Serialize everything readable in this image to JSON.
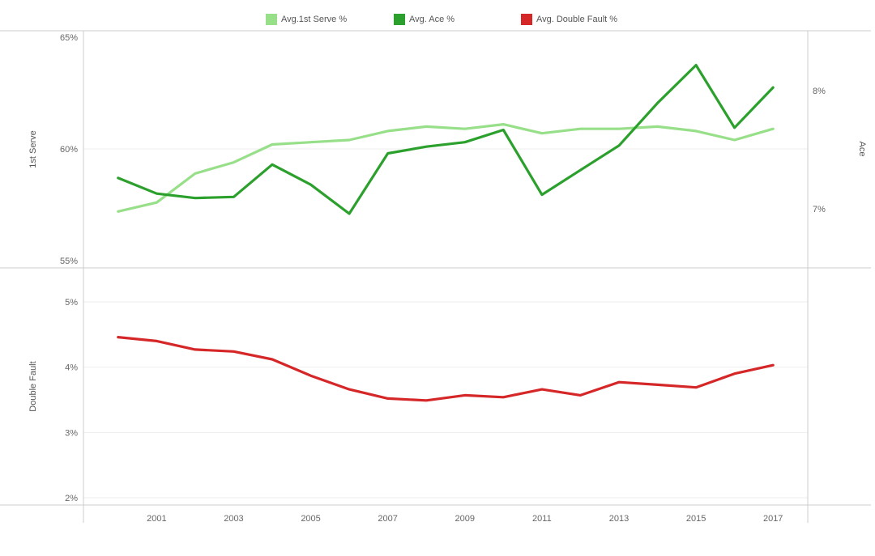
{
  "chart_data": {
    "type": "line",
    "legend": {
      "placement": "top-center",
      "items": [
        {
          "label": "Avg.1st Serve %",
          "color": "#98df8a"
        },
        {
          "label": "Avg. Ace %",
          "color": "#2ca02c"
        },
        {
          "label": "Avg. Double Fault %",
          "color": "#d62728"
        }
      ]
    },
    "x": [
      2000,
      2001,
      2002,
      2003,
      2004,
      2005,
      2006,
      2007,
      2008,
      2009,
      2010,
      2011,
      2012,
      2013,
      2014,
      2015,
      2016,
      2017
    ],
    "x_tick_labels": [
      "2001",
      "2003",
      "2005",
      "2007",
      "2009",
      "2011",
      "2013",
      "2015",
      "2017"
    ],
    "x_tick_values": [
      2001,
      2003,
      2005,
      2007,
      2009,
      2011,
      2013,
      2015,
      2017
    ],
    "xlim": [
      1999.1,
      2017.9
    ],
    "panels": [
      {
        "name": "top",
        "left_axis": {
          "label": "1st Serve",
          "range": [
            55,
            65
          ],
          "ticks": [
            55,
            60,
            65
          ],
          "tick_labels": [
            "55%",
            "60%",
            "65%"
          ]
        },
        "right_axis": {
          "label": "Ace",
          "range": [
            6.5,
            8.5
          ],
          "ticks": [
            7,
            8
          ],
          "tick_labels": [
            "7%",
            "8%"
          ]
        },
        "series": [
          {
            "name": "Avg.1st Serve %",
            "axis": "left",
            "color": "#98df8a",
            "values": [
              57.2,
              57.6,
              58.9,
              59.4,
              60.2,
              60.3,
              60.4,
              60.8,
              61.0,
              60.9,
              61.1,
              60.7,
              60.9,
              60.9,
              61.0,
              60.8,
              60.4,
              60.9
            ]
          },
          {
            "name": "Avg. Ace %",
            "axis": "left",
            "color": "#2ca02c",
            "values": [
              58.7,
              58.0,
              57.8,
              57.85,
              59.3,
              58.4,
              57.1,
              59.8,
              60.1,
              60.3,
              60.85,
              57.95,
              59.05,
              60.15,
              62.05,
              63.75,
              60.95,
              62.75
            ]
          }
        ]
      },
      {
        "name": "bottom",
        "left_axis": {
          "label": "Double Fault",
          "range": [
            1.9,
            5.5
          ],
          "ticks": [
            2,
            3,
            4,
            5
          ],
          "tick_labels": [
            "2%",
            "3%",
            "4%",
            "5%"
          ]
        },
        "series": [
          {
            "name": "Avg. Double Fault %",
            "axis": "left",
            "color": "#d62728",
            "values": [
              4.46,
              4.4,
              4.27,
              4.24,
              4.12,
              3.87,
              3.66,
              3.52,
              3.49,
              3.57,
              3.54,
              3.66,
              3.57,
              3.77,
              3.73,
              3.69,
              3.9,
              4.03
            ]
          }
        ]
      }
    ],
    "grid": true,
    "colors": {
      "axis": "#cccccc",
      "grid": "#eeeeee",
      "tick_text": "#666666",
      "axis_title": "#555555"
    }
  }
}
